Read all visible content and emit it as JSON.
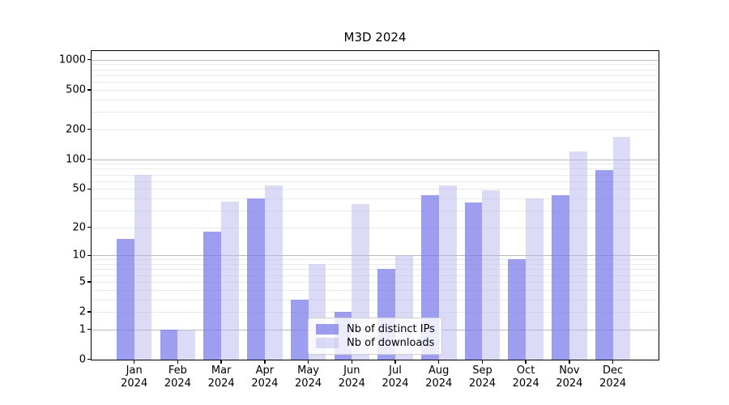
{
  "title": "M3D 2024",
  "colors": {
    "ips_fill": "#7979ec",
    "ips_opacity": 0.72,
    "downloads_fill": "#b7b7f0",
    "downloads_opacity": 0.5,
    "grid_major": "#b9b9b9",
    "grid_minor": "#eaeaea",
    "spine": "#000000"
  },
  "chart_data": {
    "type": "bar",
    "title": "M3D 2024",
    "categories": [
      "Jan",
      "Feb",
      "Mar",
      "Apr",
      "May",
      "Jun",
      "Jul",
      "Aug",
      "Sep",
      "Oct",
      "Nov",
      "Dec"
    ],
    "year_label": "2024",
    "series": [
      {
        "name": "Nb of distinct IPs",
        "values": [
          15,
          1,
          18,
          40,
          3,
          2,
          7,
          43,
          36,
          9,
          43,
          77
        ]
      },
      {
        "name": "Nb of downloads",
        "values": [
          70,
          1,
          37,
          54,
          8,
          35,
          10,
          54,
          48,
          40,
          121,
          167
        ]
      }
    ],
    "yscale": "log1p",
    "yticks": [
      0,
      1,
      2,
      5,
      10,
      20,
      50,
      100,
      200,
      500,
      1000
    ],
    "ylim": [
      0,
      1200
    ],
    "grid": "horizontal major+minor",
    "legend_position": "inside-bottom-center"
  }
}
